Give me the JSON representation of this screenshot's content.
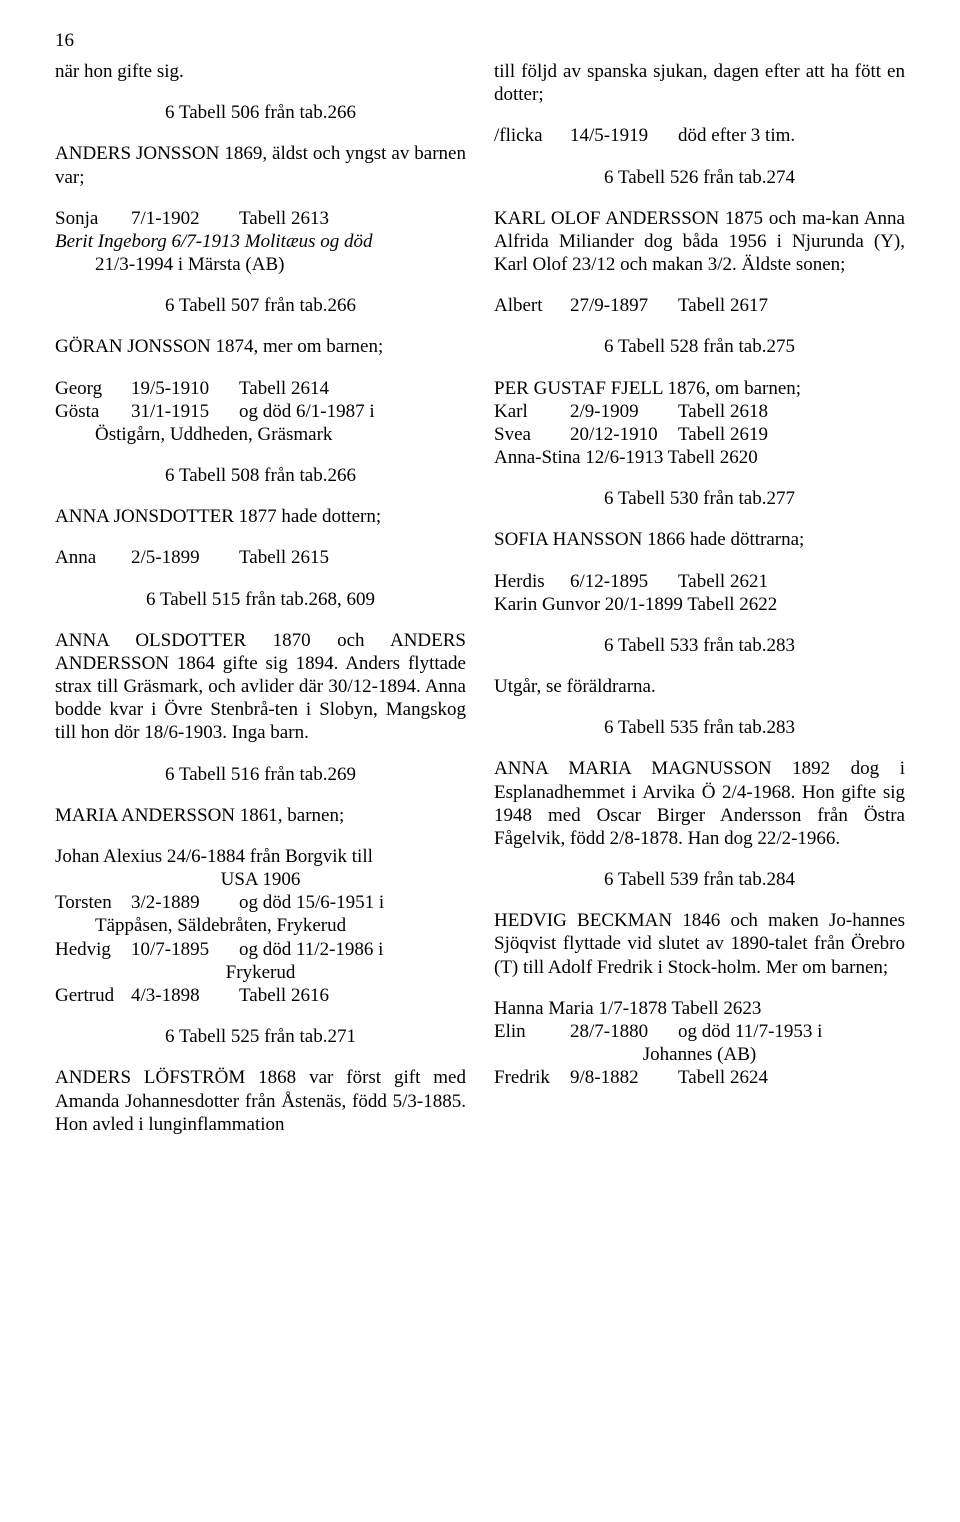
{
  "pageNumber": "16",
  "left": {
    "p1": "när hon gifte sig.",
    "h1": "6 Tabell 506 från tab.266",
    "p2": "   ANDERS JONSSON 1869, äldst och yngst av barnen var;",
    "l1": [
      "Sonja",
      "7/1-1902",
      "Tabell 2613"
    ],
    "l2a": "Berit Ingeborg 6/7-1913 Molitæus og död",
    "l2b": "21/3-1994 i Märsta (AB)",
    "h2": "6 Tabell 507 från tab.266",
    "p3": "   GÖRAN JONSSON  1874, mer om barnen;",
    "l3": [
      "Georg",
      "19/5-1910",
      "Tabell 2614"
    ],
    "l4a": [
      "Gösta",
      "31/1-1915",
      "og död 6/1-1987 i"
    ],
    "l4b": "Östigårn, Uddheden, Gräsmark",
    "h3": "6 Tabell 508 från tab.266",
    "p4": "   ANNA JONSDOTTER 1877 hade dottern;",
    "l5": [
      "Anna",
      "2/5-1899",
      "Tabell 2615"
    ],
    "h4": "6 Tabell 515 från tab.268, 609",
    "p5": "   ANNA OLSDOTTER 1870 och ANDERS ANDERSSON 1864 gifte sig 1894. Anders flyttade strax till Gräsmark, och avlider där 30/12-1894. Anna bodde kvar i Övre Stenbrå-ten i Slobyn, Mangskog till hon dör 18/6-1903. Inga barn.",
    "h5": "6 Tabell 516 från tab.269",
    "p6": "   MARIA ANDERSSON 1861, barnen;",
    "l6a": "Johan Alexius 24/6-1884 från Borgvik till",
    "l6b": "USA 1906",
    "l7a": [
      "Torsten",
      "3/2-1889",
      "og död 15/6-1951 i"
    ],
    "l7b": "Täppåsen, Säldebråten, Frykerud",
    "l8a": [
      "Hedvig",
      "10/7-1895",
      "og död 11/2-1986 i"
    ],
    "l8b": "Frykerud",
    "l9": [
      "Gertrud",
      "4/3-1898",
      "Tabell 2616"
    ],
    "h6": "6 Tabell 525 från tab.271",
    "p7": "   ANDERS LÖFSTRÖM 1868 var först gift med Amanda Johannesdotter från Åstenäs, född 5/3-1885. Hon avled i lunginflammation"
  },
  "right": {
    "p1": "till följd av spanska sjukan, dagen efter att ha fött en dotter;",
    "l1": [
      "/flicka",
      "14/5-1919",
      "död efter 3 tim."
    ],
    "h1": "6 Tabell 526 från tab.274",
    "p2": "   KARL OLOF ANDERSSON 1875 och ma-kan Anna Alfrida Miliander dog båda 1956 i Njurunda (Y), Karl Olof 23/12 och makan 3/2. Äldste sonen;",
    "l2": [
      "Albert",
      "27/9-1897",
      "Tabell 2617"
    ],
    "h2": "6 Tabell 528 från tab.275",
    "p3": "   PER GUSTAF FJELL 1876, om barnen;",
    "l3": [
      "Karl",
      "2/9-1909",
      "Tabell 2618"
    ],
    "l4": [
      "Svea",
      "20/12-1910",
      "Tabell 2619"
    ],
    "l5": "Anna-Stina 12/6-1913 Tabell 2620",
    "h3": "6 Tabell 530 från tab.277",
    "p4": "   SOFIA HANSSON 1866 hade döttrarna;",
    "l6": [
      "Herdis",
      "6/12-1895",
      "Tabell 2621"
    ],
    "l7": "Karin Gunvor 20/1-1899 Tabell 2622",
    "h4": "6 Tabell 533 från tab.283",
    "p5": "Utgår, se föräldrarna.",
    "h5": "6 Tabell 535 från tab.283",
    "p6": "   ANNA MARIA MAGNUSSON 1892 dog i Esplanadhemmet i Arvika Ö 2/4-1968. Hon gifte sig 1948 med Oscar Birger Andersson från Östra Fågelvik, född 2/8-1878. Han dog 22/2-1966.",
    "h6": "6 Tabell 539 från tab.284",
    "p7": "   HEDVIG BECKMAN 1846 och maken Jo-hannes Sjöqvist flyttade vid slutet av 1890-talet från Örebro (T) till Adolf Fredrik i Stock-holm. Mer om barnen;",
    "l8": "Hanna Maria 1/7-1878 Tabell 2623",
    "l9a": [
      "Elin",
      "28/7-1880",
      "og död 11/7-1953 i"
    ],
    "l9b": "Johannes (AB)",
    "l10": [
      "Fredrik",
      "9/8-1882",
      "Tabell 2624"
    ]
  }
}
